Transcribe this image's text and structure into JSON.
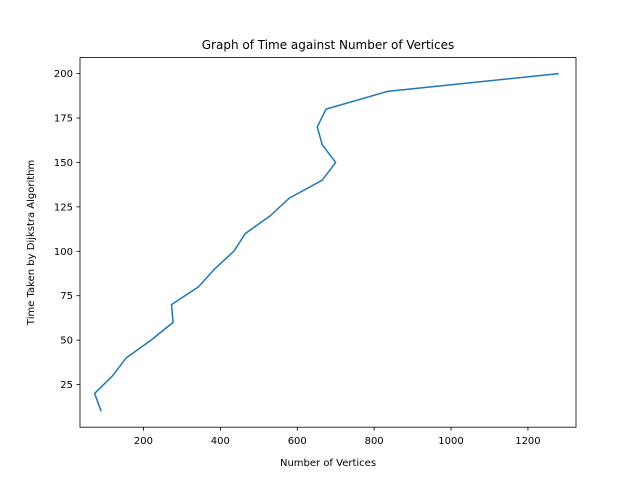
{
  "chart_data": {
    "type": "line",
    "title": "Graph of Time against Number of Vertices",
    "xlabel": "Number of Vertices",
    "ylabel": "Time Taken by Dijkstra Algorithm",
    "xlim": [
      35,
      1325
    ],
    "ylim": [
      1,
      209
    ],
    "xticks": [
      200,
      400,
      600,
      800,
      1000,
      1200
    ],
    "yticks": [
      25,
      50,
      75,
      100,
      125,
      150,
      175,
      200
    ],
    "grid": false,
    "series": [
      {
        "color": "#1f77b4",
        "points": [
          {
            "x": 90,
            "y": 10
          },
          {
            "x": 73,
            "y": 20
          },
          {
            "x": 120,
            "y": 30
          },
          {
            "x": 155,
            "y": 40
          },
          {
            "x": 220,
            "y": 50
          },
          {
            "x": 277,
            "y": 60
          },
          {
            "x": 273,
            "y": 70
          },
          {
            "x": 343,
            "y": 80
          },
          {
            "x": 385,
            "y": 90
          },
          {
            "x": 435,
            "y": 100
          },
          {
            "x": 465,
            "y": 110
          },
          {
            "x": 530,
            "y": 120
          },
          {
            "x": 580,
            "y": 130
          },
          {
            "x": 665,
            "y": 140
          },
          {
            "x": 700,
            "y": 150
          },
          {
            "x": 665,
            "y": 160
          },
          {
            "x": 652,
            "y": 170
          },
          {
            "x": 675,
            "y": 180
          },
          {
            "x": 835,
            "y": 190
          },
          {
            "x": 1280,
            "y": 200
          }
        ]
      }
    ]
  }
}
